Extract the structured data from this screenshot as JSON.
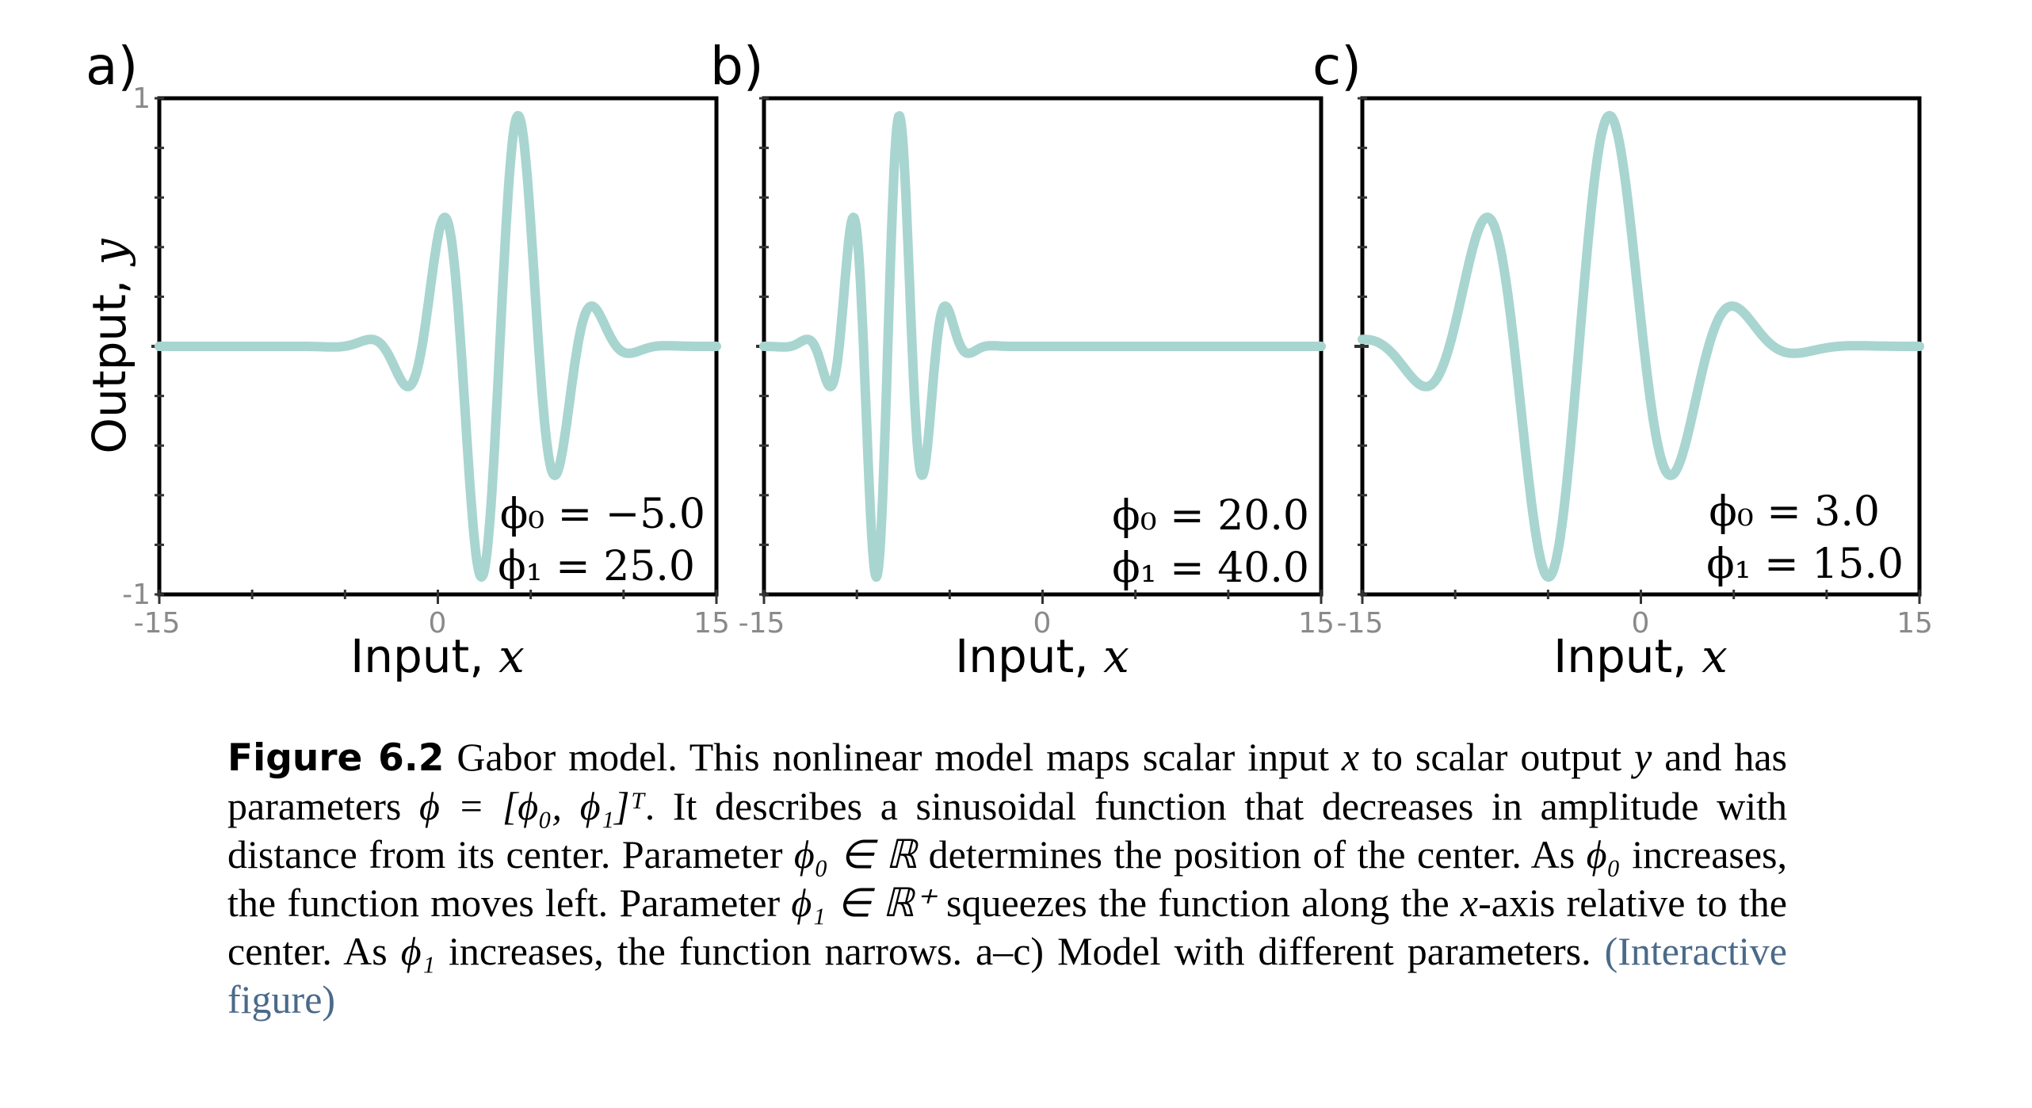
{
  "figure": {
    "panels": [
      {
        "letter": "a)",
        "phi0": "ϕ₀ = −5.0",
        "phi1": "ϕ₁ = 25.0"
      },
      {
        "letter": "b)",
        "phi0": "ϕ₀ = 20.0",
        "phi1": "ϕ₁ = 40.0"
      },
      {
        "letter": "c)",
        "phi0": "ϕ₀ = 3.0",
        "phi1": "ϕ₁ = 15.0"
      }
    ],
    "xlabel_text": "Input, ",
    "xlabel_var": "x",
    "ylabel_text": "Output, ",
    "ylabel_var": "y",
    "x_ticks": [
      "-15",
      "0",
      "15"
    ],
    "y_ticks": [
      "1",
      "-1"
    ],
    "curve_color": "#a8d5d0"
  },
  "chart_data": [
    {
      "type": "line",
      "panel": "a)",
      "function": "gabor",
      "phi0": -5.0,
      "phi1": 25.0,
      "xlim": [
        -15,
        15
      ],
      "ylim": [
        -1,
        1
      ],
      "grid": false
    },
    {
      "type": "line",
      "panel": "b)",
      "function": "gabor",
      "phi0": 20.0,
      "phi1": 40.0,
      "xlim": [
        -15,
        15
      ],
      "ylim": [
        -1,
        1
      ],
      "grid": false
    },
    {
      "type": "line",
      "panel": "c)",
      "function": "gabor",
      "phi0": 3.0,
      "phi1": 15.0,
      "xlim": [
        -15,
        15
      ],
      "ylim": [
        -1,
        1
      ],
      "grid": false
    }
  ],
  "caption": {
    "label": "Figure 6.2",
    "p1": " Gabor model.  This nonlinear model maps scalar input ",
    "x1": "x",
    "p2": " to scalar output ",
    "y1": "y",
    "p3": " and has parameters ",
    "phi_vec": "ϕ = [ϕ₀, ϕ₁]ᵀ",
    "p4": ".  It describes a sinusoidal function that decreases in amplitude with distance from its center.  Parameter ",
    "phi0_in_R": "ϕ₀ ∈ ℝ",
    "p5": " determines the position of the center.  As ",
    "phi0": "ϕ₀",
    "p6": " increases, the function moves left.  Parameter ",
    "phi1_in_Rplus": "ϕ₁ ∈ ℝ⁺",
    "p7": " squeezes the function along the ",
    "x2": "x",
    "p8": "-axis relative to the center.  As ",
    "phi1": "ϕ₁",
    "p9": " increases, the function narrows.  a–c) Model with different parameters. ",
    "link": "(Interactive figure)"
  }
}
